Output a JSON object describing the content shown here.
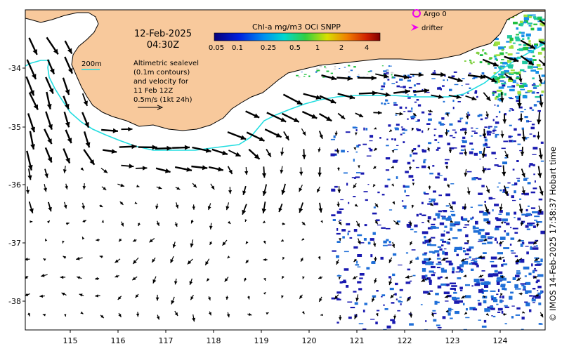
{
  "title": {
    "date": "12-Feb-2025",
    "time": "04:30Z"
  },
  "colorbar": {
    "title": "Chl-a mg/m3 OCi SNPP",
    "ticks": [
      "0.05",
      "0.1",
      "0.25",
      "0.5",
      "1",
      "2",
      "4"
    ]
  },
  "legend": {
    "contour_label": "200m",
    "description": [
      "Altimetric sealevel",
      "(0.1m contours)",
      "and velocity for",
      "11 Feb 12Z",
      "0.5m/s (1kt 24h)"
    ],
    "argo_label": "Argo 0",
    "drifter_label": "drifter"
  },
  "axes": {
    "x_ticks": [
      "115",
      "116",
      "117",
      "118",
      "119",
      "120",
      "121",
      "122",
      "123",
      "124"
    ],
    "y_ticks": [
      "-34",
      "-35",
      "-36",
      "-37",
      "-38"
    ]
  },
  "credit": "© IMOS 14-Feb-2025 17:58:37 Hobart time",
  "colors": {
    "land": "#f8c99c",
    "contour_200m": "#22dde0",
    "argo": "#ee00ee",
    "drifter": "#ee00ee",
    "chl_low": "#1a1ab0",
    "chl_mid": "#1f6fd8",
    "chl_high": "#20c040"
  }
}
